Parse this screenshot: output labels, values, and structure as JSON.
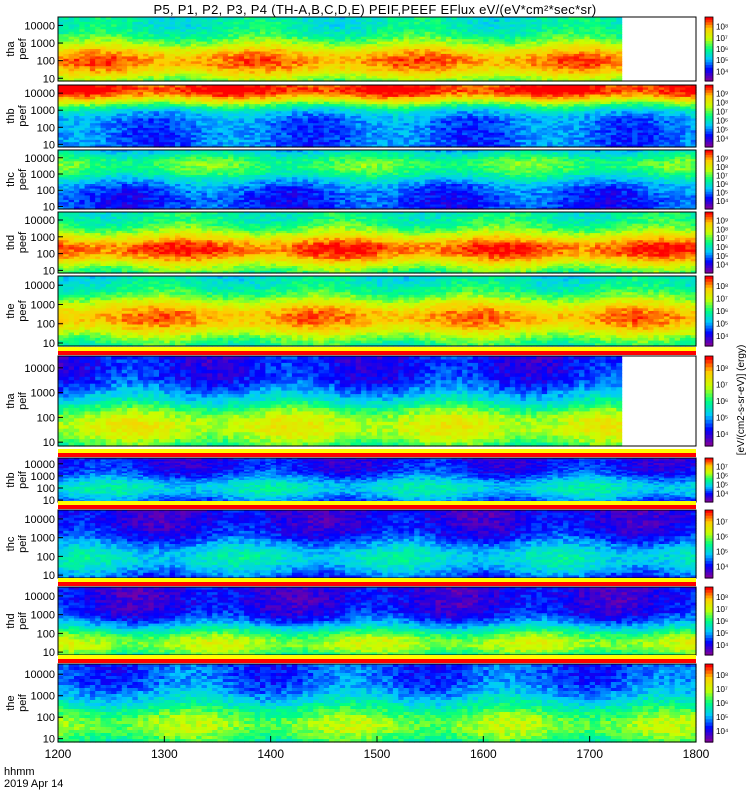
{
  "title": "P5, P1, P2, P3, P4 (TH-A,B,C,D,E) PEIF,PEEF EFlux eV/(eV*cm²*sec*sr)",
  "time_label": "hhmm",
  "date_label": "2019 Apr 14",
  "colorbar_label": "[eV/(cm2-s-sr-eV)] (ergy)",
  "colors": {
    "spectrum": [
      "#7a00a0",
      "#0000ff",
      "#00c8ff",
      "#00ff80",
      "#c8ff00",
      "#ffcc00",
      "#ff0000"
    ],
    "fill_top": "#ffff00",
    "fill_bottom": "#ff0000"
  },
  "chart_data": {
    "type": "heatmap",
    "x_ticks": [
      "1200",
      "1300",
      "1400",
      "1500",
      "1600",
      "1700",
      "1800"
    ],
    "xlim": [
      1200,
      1800
    ],
    "y_scale": "log",
    "ylim": [
      7,
      30000
    ],
    "panels": [
      {
        "ylabel": [
          "tha",
          "peef"
        ],
        "y_ticks": [
          "10000",
          "1000",
          "100",
          "10"
        ],
        "cb_ticks": [
          "10⁸",
          "10⁷",
          "10⁶",
          "10⁵",
          "10⁴"
        ],
        "x_end": 1730,
        "peak": 0.9,
        "band": 0.7,
        "width": 0.32,
        "bg": 0.42
      },
      {
        "ylabel": [
          "thb",
          "peef"
        ],
        "y_ticks": [
          "10000",
          "1000",
          "100",
          "10"
        ],
        "cb_ticks": [
          "10⁹",
          "10⁸",
          "10⁷",
          "10⁶",
          "10⁵",
          "10⁴"
        ],
        "x_end": 1800,
        "peak": 1.0,
        "band": 0.05,
        "width": 0.28,
        "bg": 0.25
      },
      {
        "ylabel": [
          "thc",
          "peef"
        ],
        "y_ticks": [
          "10000",
          "1000",
          "100",
          "10"
        ],
        "cb_ticks": [
          "10⁹",
          "10⁸",
          "10⁷",
          "10⁶",
          "10⁵",
          "10⁴"
        ],
        "x_end": 1800,
        "peak": 0.55,
        "band": 0.25,
        "width": 0.3,
        "bg": 0.2
      },
      {
        "ylabel": [
          "thd",
          "peef"
        ],
        "y_ticks": [
          "10000",
          "1000",
          "100",
          "10"
        ],
        "cb_ticks": [
          "10⁹",
          "10⁸",
          "10⁷",
          "10⁶",
          "10⁵",
          "10⁴"
        ],
        "x_end": 1800,
        "peak": 0.95,
        "band": 0.62,
        "width": 0.3,
        "bg": 0.45
      },
      {
        "ylabel": [
          "the",
          "peef"
        ],
        "y_ticks": [
          "10000",
          "1000",
          "100",
          "10"
        ],
        "cb_ticks": [
          "10⁸",
          "10⁷",
          "10⁶",
          "10⁵",
          "10⁴"
        ],
        "x_end": 1800,
        "peak": 0.88,
        "band": 0.6,
        "width": 0.32,
        "bg": 0.4
      },
      {
        "ylabel": [
          "tha",
          "peif"
        ],
        "y_ticks": [
          "10000",
          "1000",
          "100",
          "10"
        ],
        "cb_ticks": [
          "10⁸",
          "10⁷",
          "10⁶",
          "10⁵",
          "10⁴"
        ],
        "x_end": 1730,
        "peak": 0.7,
        "band": 0.8,
        "width": 0.35,
        "bg": 0.15
      },
      {
        "ylabel": [
          "thb",
          "peif"
        ],
        "y_ticks": [
          "10000",
          "1000",
          "100",
          "10"
        ],
        "cb_ticks": [
          "10⁷",
          "10⁶",
          "10⁵",
          "10⁴"
        ],
        "x_end": 1800,
        "peak": 0.4,
        "band": 0.7,
        "width": 0.3,
        "bg": 0.15
      },
      {
        "ylabel": [
          "thc",
          "peif"
        ],
        "y_ticks": [
          "10000",
          "1000",
          "100",
          "10"
        ],
        "cb_ticks": [
          "10⁷",
          "10⁶",
          "10⁵",
          "10⁴"
        ],
        "x_end": 1800,
        "peak": 0.4,
        "band": 0.72,
        "width": 0.3,
        "bg": 0.12
      },
      {
        "ylabel": [
          "thd",
          "peif"
        ],
        "y_ticks": [
          "10000",
          "1000",
          "100",
          "10"
        ],
        "cb_ticks": [
          "10⁸",
          "10⁷",
          "10⁶",
          "10⁵",
          "10⁴"
        ],
        "x_end": 1800,
        "peak": 0.65,
        "band": 0.85,
        "width": 0.3,
        "bg": 0.12
      },
      {
        "ylabel": [
          "the",
          "peif"
        ],
        "y_ticks": [
          "10000",
          "1000",
          "100",
          "10"
        ],
        "cb_ticks": [
          "10⁸",
          "10⁷",
          "10⁶",
          "10⁵",
          "10⁴"
        ],
        "x_end": 1800,
        "peak": 0.62,
        "band": 0.8,
        "width": 0.35,
        "bg": 0.22
      }
    ]
  }
}
